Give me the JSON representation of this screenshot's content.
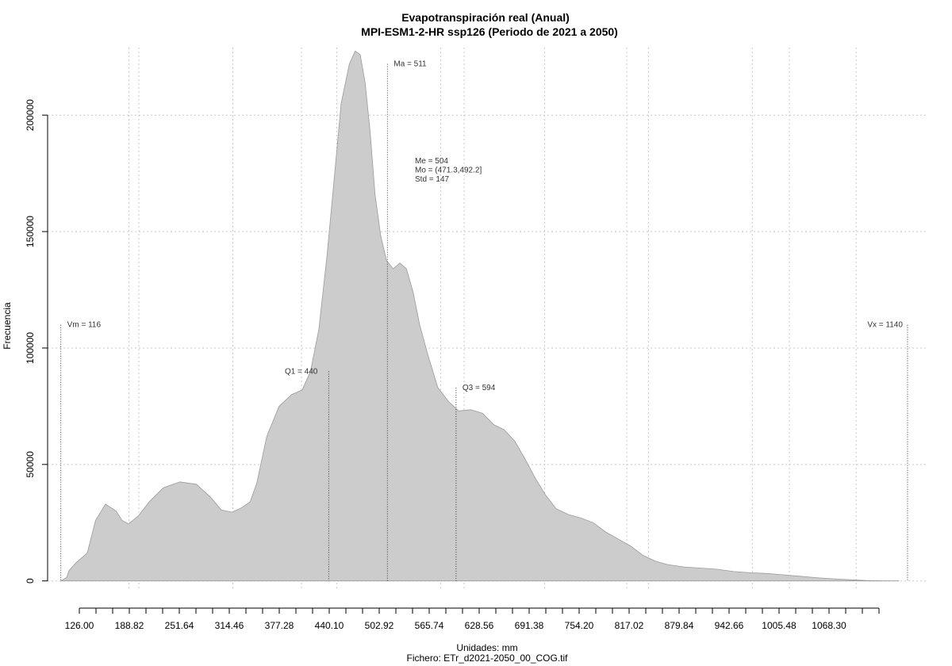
{
  "chart_data": {
    "type": "area",
    "title": "Evapotranspiración real (Anual)",
    "subtitle": "MPI-ESM1-2-HR ssp126 (Periodo de 2021 a 2050)",
    "xlabel": "Unidades: mm",
    "caption": "Fichero: ETr_d2021-2050_00_COG.tif",
    "ylabel": "Frecuencia",
    "xlim": [
      100,
      1165
    ],
    "ylim": [
      -11000,
      229000
    ],
    "grid": true,
    "fill_color": "#cccccc",
    "x_ticks": [
      "126.00",
      "188.82",
      "251.64",
      "314.46",
      "377.28",
      "440.10",
      "502.92",
      "565.74",
      "628.56",
      "691.38",
      "754.20",
      "817.02",
      "879.84",
      "942.66",
      "1005.48",
      "1068.30"
    ],
    "y_ticks": [
      "0",
      "50000",
      "100000",
      "150000",
      "200000"
    ],
    "series": [
      {
        "x": [
          116,
          123,
          126,
          135,
          148,
          158,
          170,
          183,
          190,
          198,
          210,
          223,
          240,
          260,
          280,
          297,
          310,
          323,
          335,
          345,
          353,
          365,
          380,
          395,
          408,
          418,
          428,
          438,
          448,
          455,
          465,
          472,
          478,
          484,
          490,
          496,
          503,
          510,
          518,
          526,
          534,
          542,
          550,
          560,
          572,
          585,
          597,
          612,
          626,
          640,
          652,
          665,
          678,
          690,
          702,
          715,
          730,
          745,
          760,
          775,
          790,
          805,
          820,
          835,
          850,
          870,
          890,
          910,
          930,
          950,
          970,
          990,
          1010,
          1030,
          1050,
          1070,
          1090,
          1110,
          1130
        ],
        "y": [
          0,
          1500,
          4500,
          8000,
          12000,
          26000,
          33000,
          30000,
          26000,
          24500,
          28000,
          34000,
          40000,
          42500,
          41500,
          36000,
          30500,
          29500,
          31500,
          34000,
          42000,
          62000,
          75000,
          80000,
          82000,
          90000,
          108000,
          140000,
          178000,
          205000,
          222000,
          227500,
          226000,
          214000,
          193000,
          166000,
          148000,
          137500,
          134000,
          136500,
          134000,
          124000,
          110000,
          97000,
          83000,
          77000,
          73000,
          73500,
          72000,
          67000,
          65000,
          60000,
          52000,
          44000,
          37000,
          31000,
          28500,
          27000,
          25000,
          21000,
          18000,
          15000,
          11000,
          8500,
          7000,
          6000,
          5500,
          5000,
          4000,
          3500,
          3200,
          2600,
          2000,
          1400,
          900,
          500,
          200,
          80,
          0
        ]
      }
    ],
    "markers": [
      {
        "label": "Vm = 116",
        "x": 116,
        "y": 110000
      },
      {
        "label": "Q1 = 440",
        "x": 440,
        "y": 90000
      },
      {
        "label": "Ma = 511",
        "x": 511,
        "y": 222000
      },
      {
        "label": "Q3 = 594",
        "x": 594,
        "y": 83000
      },
      {
        "label": "Vx = 1140",
        "x": 1140,
        "y": 110000
      }
    ],
    "stats": [
      "Me = 504",
      "Mo = (471.3,492.2]",
      "Std = 147"
    ]
  }
}
